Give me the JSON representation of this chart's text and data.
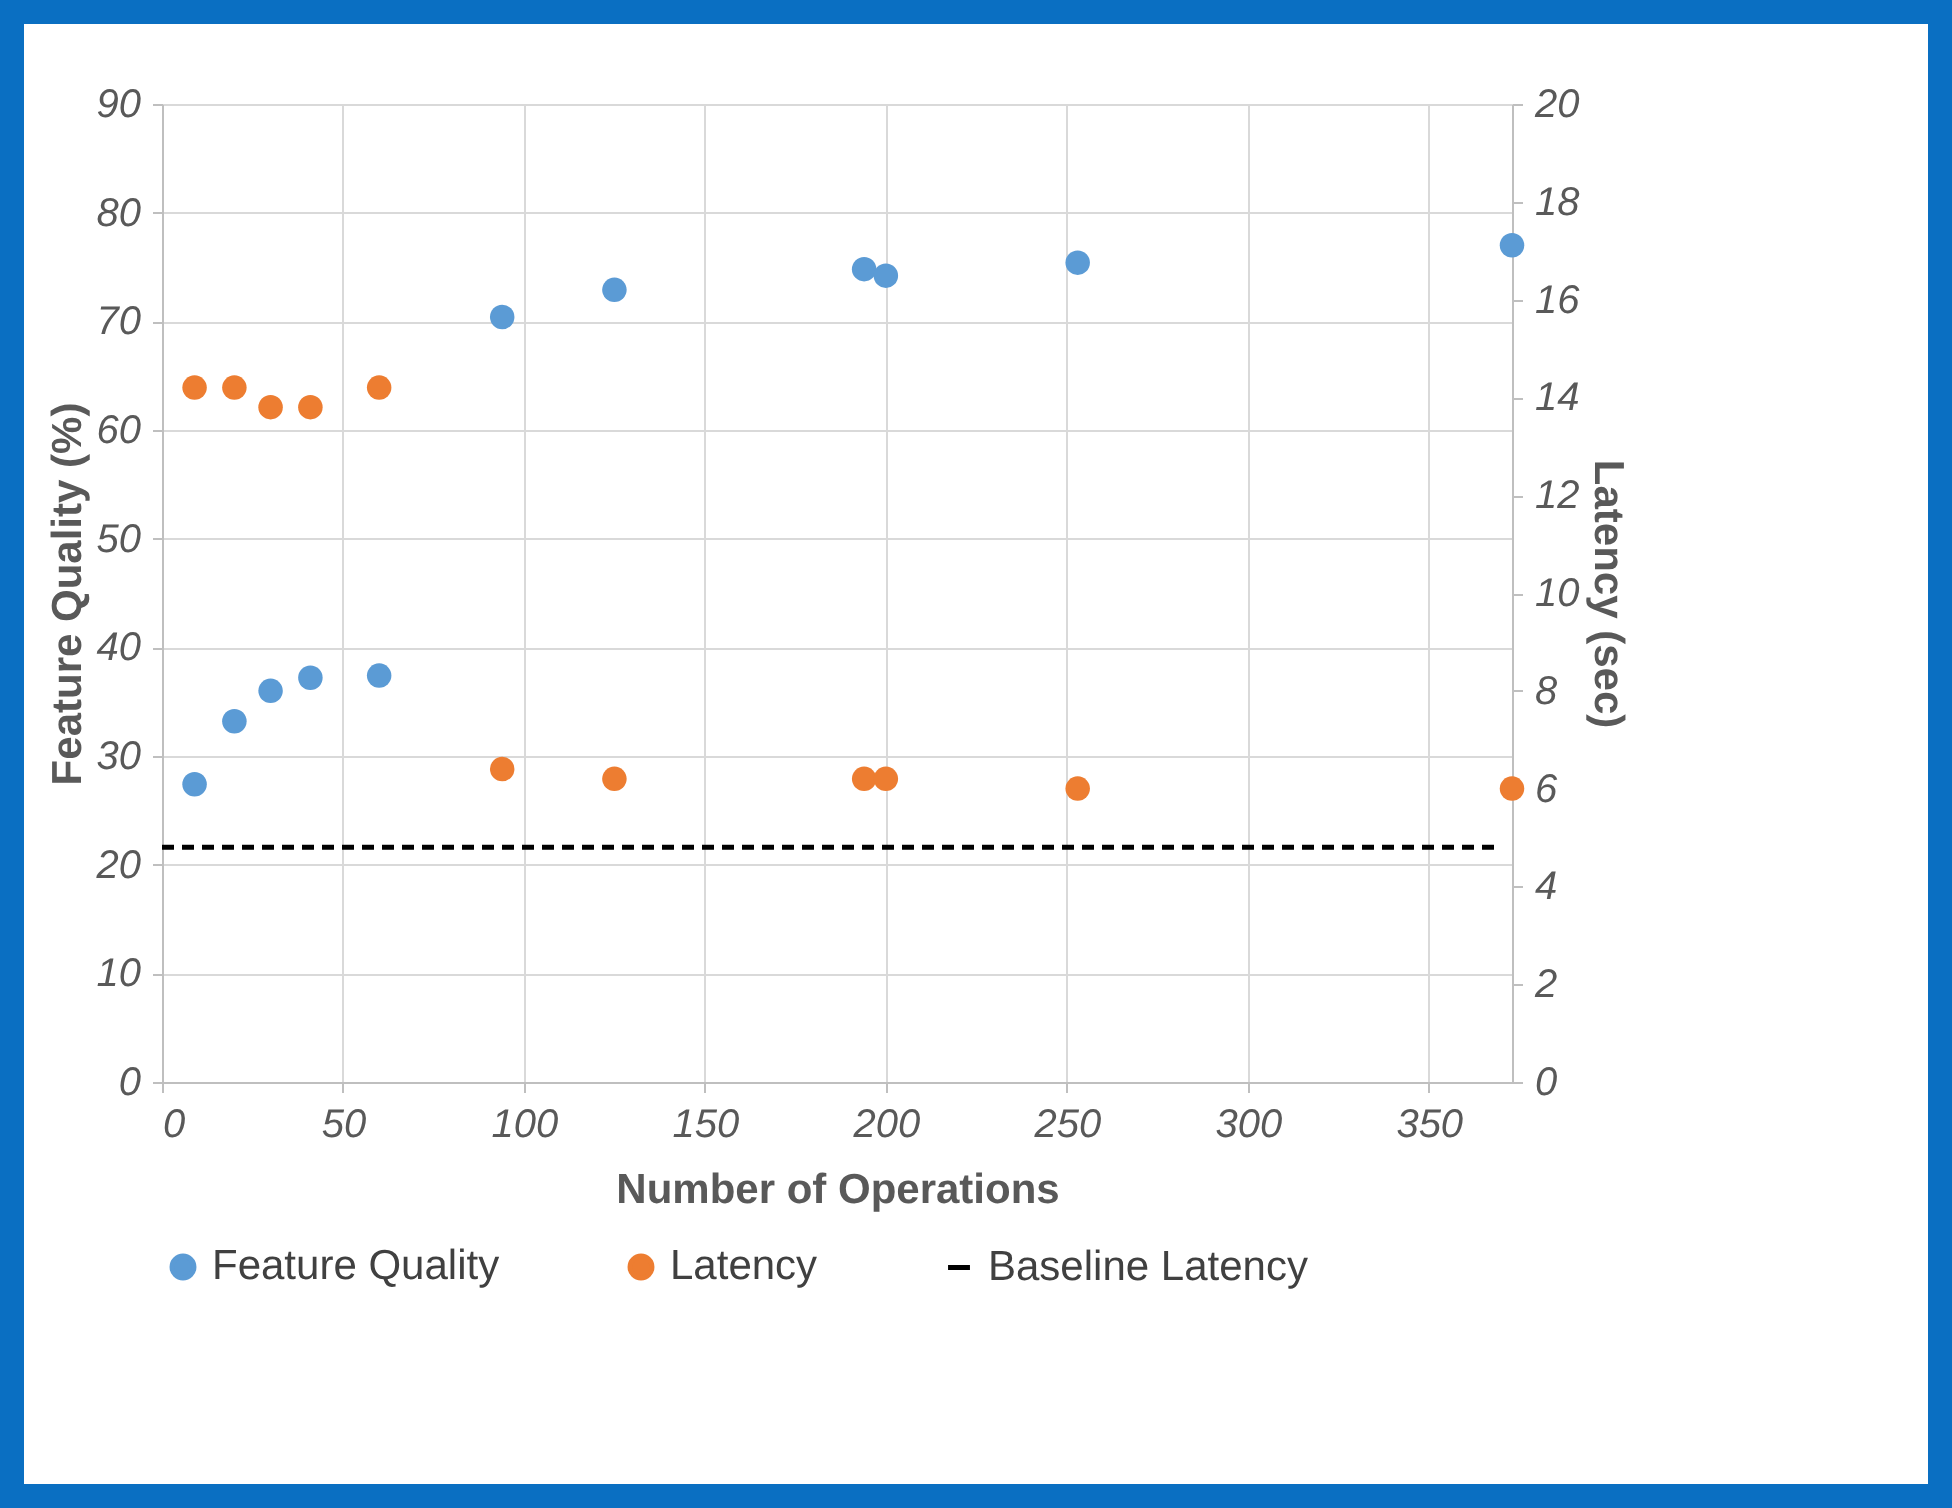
{
  "chart_data": {
    "type": "scatter",
    "xlabel": "Number of Operations",
    "ylabel": "Feature Quality (%)",
    "y2label": "Latency (sec)",
    "xlim": [
      0,
      373
    ],
    "xticks": [
      0,
      50,
      100,
      150,
      200,
      250,
      300,
      350
    ],
    "ylim": [
      0,
      90
    ],
    "yticks": [
      0,
      10,
      20,
      30,
      40,
      50,
      60,
      70,
      80,
      90
    ],
    "y2lim": [
      0,
      20
    ],
    "y2ticks": [
      0,
      2,
      4,
      6,
      8,
      10,
      12,
      14,
      16,
      18,
      20
    ],
    "grid": true,
    "legend": "bottom",
    "marker": "circle",
    "x": [
      9,
      20,
      30,
      41,
      60,
      94,
      125,
      194,
      200,
      253,
      373
    ],
    "series": [
      {
        "name": "Feature Quality",
        "color": "#5b9bd5",
        "values": [
          27.4,
          33.2,
          36.0,
          37.2,
          37.4,
          70.4,
          72.9,
          74.8,
          74.2,
          75.4,
          77.0
        ]
      },
      {
        "name": "Latency",
        "color": "#ed7d31",
        "axis": "y2",
        "values": [
          14.2,
          14.2,
          13.8,
          13.8,
          14.2,
          6.4,
          6.2,
          6.2,
          6.2,
          6.0,
          6.0
        ]
      },
      {
        "name": "Baseline Latency",
        "type": "line",
        "color": "#000000",
        "axis": "y2",
        "line_style": "dashed",
        "marker": "none",
        "x": [
          0,
          370
        ],
        "values": [
          4.8,
          4.8
        ]
      }
    ]
  }
}
